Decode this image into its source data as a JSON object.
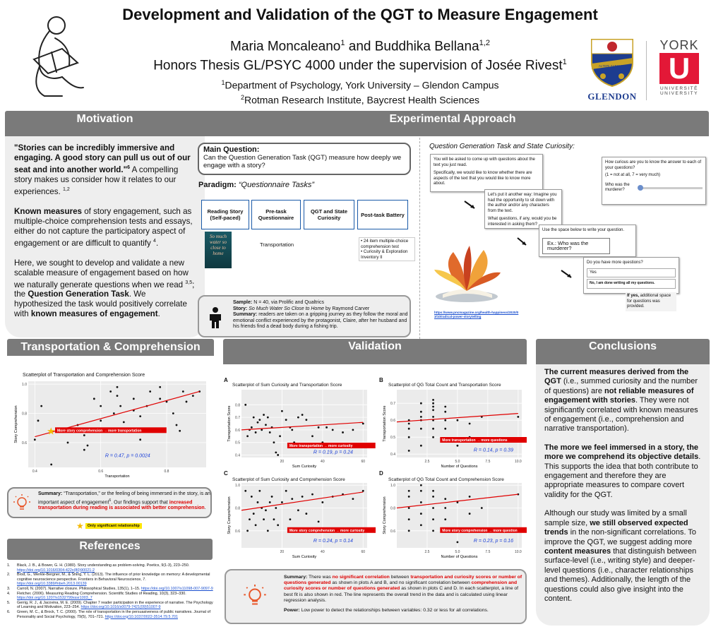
{
  "header": {
    "title": "Development and Validation of the QGT to Measure Engagement",
    "authors": "Maria Moncaleano",
    "authors_sup1": "1",
    "authors_mid": " and Buddhika Bellana",
    "authors_sup2": "1,2",
    "supervision": "Honors Thesis GL/PSYC 4000 under the supervision of Josée Rivest",
    "supervision_sup": "1",
    "affil1_sup": "1",
    "affil1": "Department of Psychology, York University – Glendon Campus",
    "affil2_sup": "2",
    "affil2": "Rotman Research Institute, Baycrest Health Sciences",
    "logo_glendon": "GLENDON",
    "logo_motto": "ALTERI SAECULO",
    "logo_york": "YORK",
    "logo_york_u": "U",
    "logo_york_sub1": "UNIVERSITÉ",
    "logo_york_sub2": "UNIVERSITY"
  },
  "motivation": {
    "heading": "Motivation",
    "quote": "\"Stories can be incredibly immersive and engaging. A good story can pull us out of our seat and into another world.\"",
    "quote_sup": "6",
    "p1": "A compelling story makes us consider how it relates to our experiences.",
    "p1_sup": "1,2",
    "p2_bold": "Known measures",
    "p2": "of story engagement, such as multiple-choice comprehension tests and essays, either do not capture the participatory aspect of engagement or are difficult to quantify",
    "p2_sup": "4",
    "p3": "Here, we sought to develop and validate a new scalable measure of engagement based on how we naturally generate questions when we read",
    "p3_sup": "3,5",
    "p3b": "; the",
    "p3_bold": "Question Generation Task",
    "p3c": ". We hypothesized the task would positively correlate with",
    "p3_bold2": "known measures of engagement",
    "p3d": "."
  },
  "approach": {
    "heading": "Experimental Approach",
    "mq_label": "Main Question:",
    "mq_text": "Can the Question Generation Task (QGT) measure how deeply we engage with a story?",
    "paradigm_label": "Paradigm:",
    "paradigm_text": "“Questionnaire Tasks”",
    "steps": [
      "Reading Story (Self-paced)",
      "Pre-task Questionnaire",
      "QGT and State Curiosity",
      "Post-task Battery"
    ],
    "step2_sub": "Transportation",
    "step4_sub": [
      "24 item multiple-choice comprehension test",
      "Curiosity & Exploration Inventory II"
    ],
    "book": "So much water so close to home",
    "sample_label": "Sample:",
    "sample": "N = 40, via Prolific and Qualtrics",
    "story_label": "Story:",
    "story": "So Much Water So Close to Home",
    "story_by": " by Raymond Carver",
    "summary_label": "Summary:",
    "summary": "readers are taken on a gripping journey as they follow the moral and emotional conflict experienced by the protagonist, Claire, after her husband and his friends find a dead body during a fishing trip.",
    "qgt_title": "Question Generation Task and State Curiosity:",
    "s1": "You will be asked to come up with questions about the text you just read.",
    "s1b": "Specifically, we would like to know whether there are aspects of the text that you would like to know more about.",
    "s2": "Let's put it another way: Imagine you had the opportunity to sit down with the author and/or any characters from the text.",
    "s2b": "What questions, if any, would you be interested in asking them?",
    "s3": "Use the space below to write your question.",
    "s3_ex": "Ex.: Who was the murderer?",
    "s4": "Do you have more questions?",
    "s4_yes": "Yes",
    "s4_no": "No, I am done writing all my questions.",
    "s4_note": "If yes, additional space for questions was provided.",
    "s5": "How curious are you to know the answer to each of your questions?",
    "s5_scale": "(1 = not at all, 7 = very much)",
    "s5_q": "Who was the murderer?",
    "link": "https://www.pncmagazine.org/health-happiness/2020/03/10/radical-power-storytelling"
  },
  "transport": {
    "heading": "Transportation & Comprehension",
    "chart_title": "Scatterplot of Transportation and Comprehension Score",
    "xlabel": "Transportation",
    "ylabel": "Story Comprehension",
    "annot": "More story comprehension → more transportation",
    "stat": "R = 0.47, p = 0.0024",
    "sum_label": "Summary:",
    "sum1": "“Transportation,” or the feeling of being immersed in the story, is an important aspect of engagement",
    "sum_sup": "6",
    "sum2": ". Our findings support that",
    "sum_red": "increased transportation during reading is associated with better comprehension",
    "sum3": ".",
    "legend": "Only significant  relationship"
  },
  "validation": {
    "heading": "Validation",
    "A_title": "Scatterplot of Sum Curiosity and Transportation Score",
    "B_title": "Scatterplot of QG Total Count and Transportation Score",
    "C_title": "Scatterplot of Sum Curiosity and Comprehension Score",
    "D_title": "Scatterplot of QG Total Count and Comprehension Score",
    "A_annot": "More transportation → more curiosity",
    "B_annot": "More transportation → more questions",
    "C_annot": "More story comprehension → more curiosity",
    "D_annot": "More story comprehension → more question",
    "A_stat": "R = 0.19, p = 0.24",
    "B_stat": "R = 0.14, p = 0.39",
    "C_stat": "R = 0.24, p = 0.14",
    "D_stat": "R = 0.23, p = 0.16",
    "xA": "Sum Curiosity",
    "xB": "Number of Questions",
    "yT": "Transportation Score",
    "yC": "Story Comprehension",
    "sum_label": "Summary:",
    "s1": "There was",
    "s1r": "no significant correlation",
    "s2": "between",
    "s2r": "transportation and curiosity scores or number of questions generated",
    "s3": "as shown in plots A and B, and no significant correlation between",
    "s3r": "comprehension and curiosity scores or number of questions generated",
    "s4": "as shown in plots C and D. In each scatterplot, a line of best fit is also shown in red. The line represents the overall trend in the data and is calculated using linear regression analysis.",
    "power_label": "Power:",
    "power": "Low power to detect the relationships between variables: 0.32 or less for all correlations."
  },
  "conclusions": {
    "heading": "Conclusions",
    "p1b": "The current measures derived from the QGT",
    "p1": "(i.e., summed curiosity and the number of questions) are",
    "p1b2": "not reliable measures of engagement with stories",
    "p1c": ". They were not significantly correlated with known measures of engagement (i.e., comprehension and narrative transportation).",
    "p2b": "The more we feel immersed in a story, the more we comprehend its objective details",
    "p2": ". This supports the idea that both contribute to engagement and therefore they are appropriate measures to compare covert validity for the QGT.",
    "p3": "Although our study was limited by a small sample size,",
    "p3b": "we still observed expected trends",
    "p3c": "in the non-significant correlations. To improve the QGT, we suggest adding more",
    "p3b2": "content measures",
    "p3d": "that distinguish between surface-level (i.e., writing style) and deeper-level questions (i.e., character relationships and themes). Additionally, the length of the questions could also give insight into the content."
  },
  "references": {
    "heading": "References",
    "items": [
      {
        "t": "Black, J. B., & Bower, G. H. (1980). Story understanding as problem-solving. Poetics, 9(1-3), 223–250.",
        "l": "https://doi.org/10.1016/0304-422x(80)90021-2"
      },
      {
        "t": "Brod, G., Werkle-Bergner, M., & Shing, Y. L. (2013). The influence of prior knowledge on memory: A developmental cognitive neuroscience perspective. Frontiers in Behavioral Neuroscience, 7.",
        "l": "https://doi.org/10.3389/fnbeh.2013.00139"
      },
      {
        "t": "Carroll, N. (2007). Narrative closure. Philosophical Studies, 135(1), 1–15.",
        "l": "https://doi.org/10.1007/s11098-007-9097-9"
      },
      {
        "t": "Fletcher. (2006). Measuring Reading Comprehension. Scientific Studies of Reading, 10(3), 323–330.",
        "l": "https://doi.org/10.1207/s1532799xssr1003_7"
      },
      {
        "t": "Gerrig, R. J., & Jacovina, M. E. (2009). Chapter 7 reader participation in the experience of narrative. The Psychology of Learning and Motivation, 223–254.",
        "l": "https://doi.org/10.1016/s0079-7421(09)51007-9"
      },
      {
        "t": "Green, M. C., & Brock, T. C. (2000). The role of transportation in the persuasiveness of public narratives. Journal of Personality and Social Psychology, 79(5), 701–721.",
        "l": "https://doi.org/10.1037/0022-3514.79.5.701"
      }
    ]
  },
  "chart_data": [
    {
      "type": "scatter",
      "title": "Scatterplot of Transportation and Comprehension Score",
      "xlabel": "Transportation",
      "ylabel": "Story Comprehension",
      "xlim": [
        0.38,
        0.92
      ],
      "ylim": [
        0.43,
        1.02
      ],
      "xticks": [
        0.4,
        0.6,
        0.8
      ],
      "yticks": [
        0.6,
        0.8,
        1.0
      ],
      "points": [
        [
          0.4,
          0.62
        ],
        [
          0.41,
          0.75
        ],
        [
          0.42,
          0.85
        ],
        [
          0.45,
          0.45
        ],
        [
          0.5,
          0.6
        ],
        [
          0.53,
          0.72
        ],
        [
          0.55,
          0.65
        ],
        [
          0.55,
          0.55
        ],
        [
          0.56,
          0.58
        ],
        [
          0.58,
          0.9
        ],
        [
          0.6,
          0.85
        ],
        [
          0.6,
          0.75
        ],
        [
          0.62,
          0.68
        ],
        [
          0.63,
          0.95
        ],
        [
          0.64,
          0.8
        ],
        [
          0.65,
          0.98
        ],
        [
          0.65,
          0.92
        ],
        [
          0.66,
          0.85
        ],
        [
          0.67,
          0.74
        ],
        [
          0.7,
          0.9
        ],
        [
          0.7,
          0.82
        ],
        [
          0.72,
          0.78
        ],
        [
          0.72,
          0.62
        ],
        [
          0.74,
          0.85
        ],
        [
          0.75,
          0.95
        ],
        [
          0.78,
          0.98
        ],
        [
          0.78,
          0.9
        ],
        [
          0.8,
          0.88
        ],
        [
          0.82,
          0.8
        ],
        [
          0.83,
          0.72
        ],
        [
          0.84,
          0.68
        ],
        [
          0.85,
          0.95
        ],
        [
          0.86,
          0.88
        ],
        [
          0.88,
          0.92
        ],
        [
          0.9,
          0.95
        ]
      ],
      "fit": [
        [
          0.4,
          0.64
        ],
        [
          0.9,
          0.95
        ]
      ],
      "r": 0.47,
      "p": 0.0024
    },
    {
      "type": "scatter",
      "title": "Scatterplot of Sum Curiosity and Transportation Score",
      "xlabel": "Sum Curiosity",
      "ylabel": "Transportation Score",
      "xlim": [
        0,
        62
      ],
      "ylim": [
        0.38,
        0.92
      ],
      "xticks": [
        20,
        40,
        60
      ],
      "yticks": [
        0.4,
        0.5,
        0.6,
        0.7,
        0.8
      ],
      "points": [
        [
          2,
          0.8
        ],
        [
          3,
          0.55
        ],
        [
          4,
          0.6
        ],
        [
          5,
          0.62
        ],
        [
          6,
          0.7
        ],
        [
          7,
          0.58
        ],
        [
          8,
          0.66
        ],
        [
          9,
          0.68
        ],
        [
          10,
          0.6
        ],
        [
          11,
          0.72
        ],
        [
          12,
          0.64
        ],
        [
          13,
          0.7
        ],
        [
          14,
          0.58
        ],
        [
          15,
          0.62
        ],
        [
          16,
          0.5
        ],
        [
          17,
          0.42
        ],
        [
          18,
          0.4
        ],
        [
          19,
          0.55
        ],
        [
          20,
          0.75
        ],
        [
          22,
          0.68
        ],
        [
          24,
          0.62
        ],
        [
          25,
          0.6
        ],
        [
          26,
          0.5
        ],
        [
          28,
          0.7
        ],
        [
          30,
          0.72
        ],
        [
          32,
          0.68
        ],
        [
          35,
          0.55
        ],
        [
          38,
          0.62
        ],
        [
          40,
          0.5
        ],
        [
          42,
          0.62
        ],
        [
          45,
          0.6
        ],
        [
          50,
          0.58
        ],
        [
          55,
          0.6
        ],
        [
          60,
          0.65
        ]
      ],
      "fit": [
        [
          0,
          0.6
        ],
        [
          60,
          0.66
        ]
      ],
      "r": 0.19,
      "p": 0.24
    },
    {
      "type": "scatter",
      "title": "Scatterplot of QG Total Count and Transportation Score",
      "xlabel": "Number of Questions",
      "ylabel": "Transportation Score",
      "xlim": [
        0,
        10.3
      ],
      "ylim": [
        0.38,
        0.78
      ],
      "xticks": [
        2.5,
        5.0,
        7.5,
        10.0
      ],
      "yticks": [
        0.4,
        0.5,
        0.6,
        0.7
      ],
      "points": [
        [
          1,
          0.42
        ],
        [
          1,
          0.5
        ],
        [
          1,
          0.55
        ],
        [
          1,
          0.58
        ],
        [
          1,
          0.6
        ],
        [
          2,
          0.45
        ],
        [
          2,
          0.55
        ],
        [
          2,
          0.6
        ],
        [
          2,
          0.62
        ],
        [
          2,
          0.65
        ],
        [
          2,
          0.7
        ],
        [
          3,
          0.5
        ],
        [
          3,
          0.55
        ],
        [
          3,
          0.6
        ],
        [
          3,
          0.62
        ],
        [
          3,
          0.66
        ],
        [
          3,
          0.68
        ],
        [
          3,
          0.7
        ],
        [
          3,
          0.72
        ],
        [
          4,
          0.55
        ],
        [
          4,
          0.6
        ],
        [
          4,
          0.65
        ],
        [
          4,
          0.68
        ],
        [
          5,
          0.45
        ],
        [
          5,
          0.6
        ],
        [
          6,
          0.5
        ],
        [
          6,
          0.58
        ],
        [
          7,
          0.62
        ],
        [
          10,
          0.62
        ]
      ],
      "fit": [
        [
          0,
          0.59
        ],
        [
          10,
          0.64
        ]
      ],
      "r": 0.14,
      "p": 0.39
    },
    {
      "type": "scatter",
      "title": "Scatterplot of Sum Curiosity and Comprehension Score",
      "xlabel": "Sum Curiosity",
      "ylabel": "Story Comprehension",
      "xlim": [
        0,
        62
      ],
      "ylim": [
        0.45,
        1.02
      ],
      "xticks": [
        20,
        40,
        60
      ],
      "yticks": [
        0.6,
        0.8,
        1.0
      ],
      "points": [
        [
          2,
          0.95
        ],
        [
          3,
          0.6
        ],
        [
          4,
          0.7
        ],
        [
          5,
          0.9
        ],
        [
          6,
          0.75
        ],
        [
          7,
          0.65
        ],
        [
          8,
          0.85
        ],
        [
          9,
          0.95
        ],
        [
          10,
          0.8
        ],
        [
          11,
          0.7
        ],
        [
          12,
          0.78
        ],
        [
          13,
          0.6
        ],
        [
          14,
          0.85
        ],
        [
          15,
          0.9
        ],
        [
          16,
          0.7
        ],
        [
          17,
          0.8
        ],
        [
          18,
          0.65
        ],
        [
          20,
          0.85
        ],
        [
          22,
          0.95
        ],
        [
          24,
          0.7
        ],
        [
          25,
          0.88
        ],
        [
          28,
          0.78
        ],
        [
          30,
          0.9
        ],
        [
          32,
          0.75
        ],
        [
          35,
          0.92
        ],
        [
          38,
          0.68
        ],
        [
          40,
          0.85
        ],
        [
          45,
          0.9
        ],
        [
          50,
          0.92
        ],
        [
          55,
          0.88
        ],
        [
          60,
          0.95
        ]
      ],
      "fit": [
        [
          0,
          0.78
        ],
        [
          60,
          0.94
        ]
      ],
      "r": 0.24,
      "p": 0.14
    },
    {
      "type": "scatter",
      "title": "Scatterplot of QG Total Count and Comprehension Score",
      "xlabel": "Number of Questions",
      "ylabel": "Story Comprehension",
      "xlim": [
        0,
        10.3
      ],
      "ylim": [
        0.45,
        1.02
      ],
      "xticks": [
        2.5,
        5.0,
        7.5,
        10.0
      ],
      "yticks": [
        0.6,
        0.8,
        1.0
      ],
      "points": [
        [
          1,
          0.6
        ],
        [
          1,
          0.7
        ],
        [
          1,
          0.8
        ],
        [
          1,
          0.9
        ],
        [
          1,
          0.95
        ],
        [
          2,
          0.65
        ],
        [
          2,
          0.75
        ],
        [
          2,
          0.85
        ],
        [
          2,
          0.95
        ],
        [
          2,
          1.0
        ],
        [
          3,
          0.6
        ],
        [
          3,
          0.7
        ],
        [
          3,
          0.8
        ],
        [
          3,
          0.9
        ],
        [
          3,
          0.95
        ],
        [
          4,
          0.7
        ],
        [
          4,
          0.8
        ],
        [
          4,
          0.88
        ],
        [
          5,
          0.5
        ],
        [
          5,
          0.85
        ],
        [
          6,
          0.75
        ],
        [
          6,
          0.9
        ],
        [
          7,
          0.8
        ],
        [
          10,
          0.92
        ]
      ],
      "fit": [
        [
          0,
          0.8
        ],
        [
          10,
          0.92
        ]
      ],
      "r": 0.23,
      "p": 0.16
    }
  ]
}
